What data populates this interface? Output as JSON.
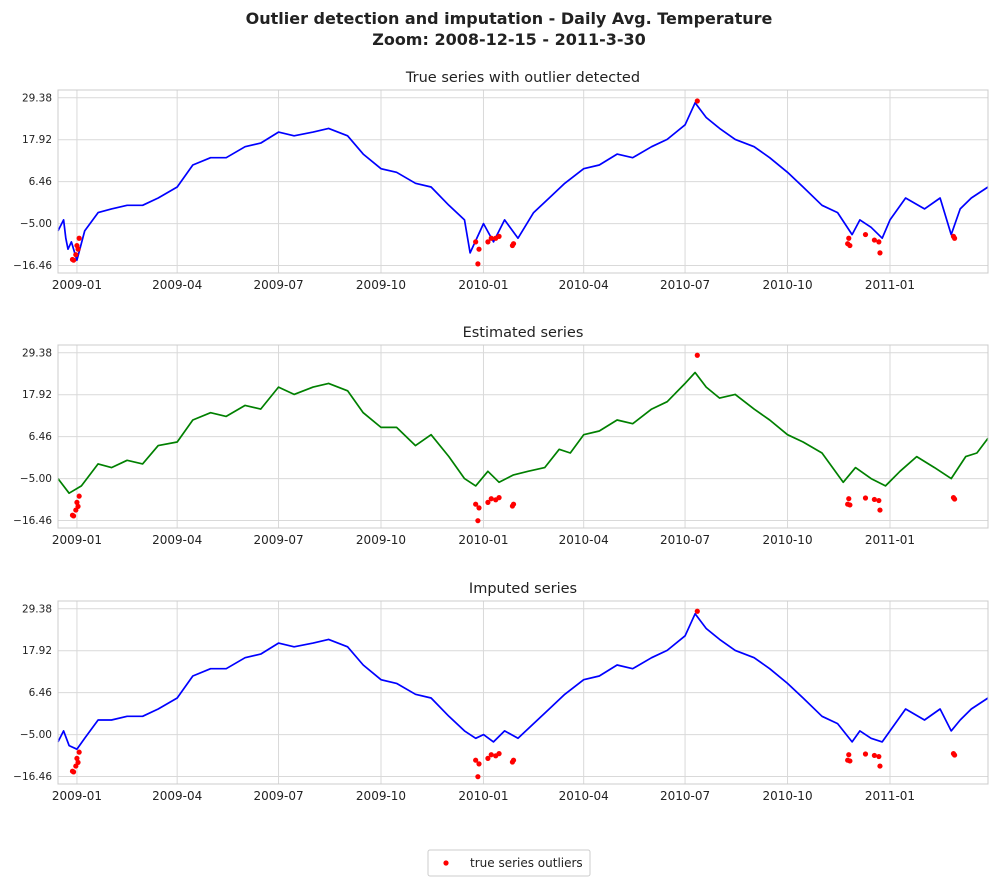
{
  "figure": {
    "title_line1": "Outlier detection and imputation - Daily Avg. Temperature",
    "title_line2": "Zoom: 2008-12-15 - 2011-3-30"
  },
  "legend": {
    "label": "true series outliers",
    "marker_color": "#ff0000"
  },
  "chart_data": [
    {
      "type": "line",
      "title": "True series with outlier detected",
      "xlim": [
        "2008-12-15",
        "2011-03-30"
      ],
      "ylim": [
        -18.5,
        31.5
      ],
      "yticks": [
        29.38,
        17.92,
        6.46,
        -5.0,
        -16.46
      ],
      "ytick_labels": [
        "29.38",
        "17.92",
        "6.46",
        "−5.00",
        "−16.46"
      ],
      "xticks": [
        "2009-01-01",
        "2009-04-01",
        "2009-07-01",
        "2009-10-01",
        "2010-01-01",
        "2010-04-01",
        "2010-07-01",
        "2010-10-01",
        "2011-01-01"
      ],
      "xtick_labels": [
        "2009-01",
        "2009-04",
        "2009-07",
        "2009-10",
        "2010-01",
        "2010-04",
        "2010-07",
        "2010-10",
        "2011-01"
      ],
      "grid": true,
      "line_color": "#0000ff",
      "line": [
        [
          "2008-12-15",
          -7
        ],
        [
          "2008-12-20",
          -4
        ],
        [
          "2008-12-22",
          -9
        ],
        [
          "2008-12-24",
          -12
        ],
        [
          "2008-12-27",
          -10
        ],
        [
          "2009-01-01",
          -15
        ],
        [
          "2009-01-08",
          -7
        ],
        [
          "2009-01-20",
          -2
        ],
        [
          "2009-02-01",
          -1
        ],
        [
          "2009-02-15",
          0
        ],
        [
          "2009-03-01",
          0
        ],
        [
          "2009-03-15",
          2
        ],
        [
          "2009-04-01",
          5
        ],
        [
          "2009-04-15",
          11
        ],
        [
          "2009-05-01",
          13
        ],
        [
          "2009-05-15",
          13
        ],
        [
          "2009-06-01",
          16
        ],
        [
          "2009-06-15",
          17
        ],
        [
          "2009-07-01",
          20
        ],
        [
          "2009-07-15",
          19
        ],
        [
          "2009-08-01",
          20
        ],
        [
          "2009-08-15",
          21
        ],
        [
          "2009-09-01",
          19
        ],
        [
          "2009-09-15",
          14
        ],
        [
          "2009-10-01",
          10
        ],
        [
          "2009-10-15",
          9
        ],
        [
          "2009-11-01",
          6
        ],
        [
          "2009-11-15",
          5
        ],
        [
          "2009-12-01",
          0
        ],
        [
          "2009-12-15",
          -4
        ],
        [
          "2009-12-20",
          -13
        ],
        [
          "2010-01-01",
          -5
        ],
        [
          "2010-01-10",
          -10
        ],
        [
          "2010-01-20",
          -4
        ],
        [
          "2010-02-01",
          -9
        ],
        [
          "2010-02-15",
          -2
        ],
        [
          "2010-03-01",
          2
        ],
        [
          "2010-03-15",
          6
        ],
        [
          "2010-04-01",
          10
        ],
        [
          "2010-04-15",
          11
        ],
        [
          "2010-05-01",
          14
        ],
        [
          "2010-05-15",
          13
        ],
        [
          "2010-06-01",
          16
        ],
        [
          "2010-06-15",
          18
        ],
        [
          "2010-07-01",
          22
        ],
        [
          "2010-07-10",
          28
        ],
        [
          "2010-07-20",
          24
        ],
        [
          "2010-08-01",
          21
        ],
        [
          "2010-08-15",
          18
        ],
        [
          "2010-09-01",
          16
        ],
        [
          "2010-09-15",
          13
        ],
        [
          "2010-10-01",
          9
        ],
        [
          "2010-10-15",
          5
        ],
        [
          "2010-11-01",
          0
        ],
        [
          "2010-11-15",
          -2
        ],
        [
          "2010-11-28",
          -8
        ],
        [
          "2010-12-05",
          -4
        ],
        [
          "2010-12-15",
          -6
        ],
        [
          "2010-12-25",
          -9
        ],
        [
          "2011-01-01",
          -4
        ],
        [
          "2011-01-15",
          2
        ],
        [
          "2011-02-01",
          -1
        ],
        [
          "2011-02-15",
          2
        ],
        [
          "2011-02-25",
          -8
        ],
        [
          "2011-03-05",
          -1
        ],
        [
          "2011-03-15",
          2
        ],
        [
          "2011-03-30",
          5
        ]
      ],
      "outliers": [
        [
          "2008-12-28",
          -14.8
        ],
        [
          "2008-12-29",
          -15.0
        ],
        [
          "2008-12-31",
          -13.5
        ],
        [
          "2009-01-01",
          -11.0
        ],
        [
          "2009-01-02",
          -12.0
        ],
        [
          "2009-01-03",
          -9.0
        ],
        [
          "2009-12-25",
          -10.0
        ],
        [
          "2009-12-27",
          -16.0
        ],
        [
          "2009-12-28",
          -12.0
        ],
        [
          "2010-01-05",
          -10.0
        ],
        [
          "2010-01-08",
          -9.0
        ],
        [
          "2010-01-12",
          -9.0
        ],
        [
          "2010-01-15",
          -8.5
        ],
        [
          "2010-01-27",
          -11.0
        ],
        [
          "2010-01-28",
          -10.5
        ],
        [
          "2010-07-12",
          28.5
        ],
        [
          "2010-11-24",
          -10.5
        ],
        [
          "2010-11-25",
          -9.0
        ],
        [
          "2010-11-26",
          -11.0
        ],
        [
          "2010-12-10",
          -8.0
        ],
        [
          "2010-12-18",
          -9.5
        ],
        [
          "2010-12-22",
          -10.0
        ],
        [
          "2010-12-23",
          -13.0
        ],
        [
          "2011-02-27",
          -8.5
        ],
        [
          "2011-02-28",
          -9.0
        ]
      ]
    },
    {
      "type": "line",
      "title": "Estimated series",
      "xlim": [
        "2008-12-15",
        "2011-03-30"
      ],
      "ylim": [
        -18.5,
        31.5
      ],
      "yticks": [
        29.38,
        17.92,
        6.46,
        -5.0,
        -16.46
      ],
      "ytick_labels": [
        "29.38",
        "17.92",
        "6.46",
        "−5.00",
        "−16.46"
      ],
      "xticks": [
        "2009-01-01",
        "2009-04-01",
        "2009-07-01",
        "2009-10-01",
        "2010-01-01",
        "2010-04-01",
        "2010-07-01",
        "2010-10-01",
        "2011-01-01"
      ],
      "xtick_labels": [
        "2009-01",
        "2009-04",
        "2009-07",
        "2009-10",
        "2010-01",
        "2010-04",
        "2010-07",
        "2010-10",
        "2011-01"
      ],
      "grid": true,
      "line_color": "#008000",
      "line": [
        [
          "2008-12-15",
          -5
        ],
        [
          "2008-12-25",
          -9
        ],
        [
          "2009-01-05",
          -7
        ],
        [
          "2009-01-20",
          -1
        ],
        [
          "2009-02-01",
          -2
        ],
        [
          "2009-02-15",
          0
        ],
        [
          "2009-03-01",
          -1
        ],
        [
          "2009-03-15",
          4
        ],
        [
          "2009-04-01",
          5
        ],
        [
          "2009-04-15",
          11
        ],
        [
          "2009-05-01",
          13
        ],
        [
          "2009-05-15",
          12
        ],
        [
          "2009-06-01",
          15
        ],
        [
          "2009-06-15",
          14
        ],
        [
          "2009-07-01",
          20
        ],
        [
          "2009-07-15",
          18
        ],
        [
          "2009-08-01",
          20
        ],
        [
          "2009-08-15",
          21
        ],
        [
          "2009-09-01",
          19
        ],
        [
          "2009-09-15",
          13
        ],
        [
          "2009-10-01",
          9
        ],
        [
          "2009-10-15",
          9
        ],
        [
          "2009-11-01",
          4
        ],
        [
          "2009-11-15",
          7
        ],
        [
          "2009-12-01",
          1
        ],
        [
          "2009-12-15",
          -5
        ],
        [
          "2009-12-25",
          -7
        ],
        [
          "2010-01-05",
          -3
        ],
        [
          "2010-01-15",
          -6
        ],
        [
          "2010-01-28",
          -4
        ],
        [
          "2010-02-10",
          -3
        ],
        [
          "2010-02-25",
          -2
        ],
        [
          "2010-03-10",
          3
        ],
        [
          "2010-03-20",
          2
        ],
        [
          "2010-04-01",
          7
        ],
        [
          "2010-04-15",
          8
        ],
        [
          "2010-05-01",
          11
        ],
        [
          "2010-05-15",
          10
        ],
        [
          "2010-06-01",
          14
        ],
        [
          "2010-06-15",
          16
        ],
        [
          "2010-07-01",
          21
        ],
        [
          "2010-07-10",
          24
        ],
        [
          "2010-07-20",
          20
        ],
        [
          "2010-08-01",
          17
        ],
        [
          "2010-08-15",
          18
        ],
        [
          "2010-09-01",
          14
        ],
        [
          "2010-09-15",
          11
        ],
        [
          "2010-10-01",
          7
        ],
        [
          "2010-10-15",
          5
        ],
        [
          "2010-11-01",
          2
        ],
        [
          "2010-11-20",
          -6
        ],
        [
          "2010-12-01",
          -2
        ],
        [
          "2010-12-15",
          -5
        ],
        [
          "2010-12-28",
          -7
        ],
        [
          "2011-01-10",
          -3
        ],
        [
          "2011-01-25",
          1
        ],
        [
          "2011-02-10",
          -2
        ],
        [
          "2011-02-25",
          -5
        ],
        [
          "2011-03-10",
          1
        ],
        [
          "2011-03-20",
          2
        ],
        [
          "2011-03-30",
          6
        ]
      ],
      "outliers": [
        [
          "2008-12-28",
          -15.0
        ],
        [
          "2008-12-29",
          -15.2
        ],
        [
          "2008-12-31",
          -13.6
        ],
        [
          "2009-01-01",
          -11.5
        ],
        [
          "2009-01-02",
          -12.6
        ],
        [
          "2009-01-03",
          -9.8
        ],
        [
          "2009-12-25",
          -12.0
        ],
        [
          "2009-12-27",
          -16.5
        ],
        [
          "2009-12-28",
          -13.0
        ],
        [
          "2010-01-05",
          -11.5
        ],
        [
          "2010-01-08",
          -10.5
        ],
        [
          "2010-01-12",
          -10.8
        ],
        [
          "2010-01-15",
          -10.2
        ],
        [
          "2010-01-27",
          -12.5
        ],
        [
          "2010-01-28",
          -12.0
        ],
        [
          "2010-07-12",
          28.7
        ],
        [
          "2010-11-24",
          -12.0
        ],
        [
          "2010-11-25",
          -10.5
        ],
        [
          "2010-11-26",
          -12.2
        ],
        [
          "2010-12-10",
          -10.3
        ],
        [
          "2010-12-18",
          -10.7
        ],
        [
          "2010-12-22",
          -11.0
        ],
        [
          "2010-12-23",
          -13.6
        ],
        [
          "2011-02-27",
          -10.2
        ],
        [
          "2011-02-28",
          -10.6
        ]
      ]
    },
    {
      "type": "line",
      "title": "Imputed series",
      "xlim": [
        "2008-12-15",
        "2011-03-30"
      ],
      "ylim": [
        -18.5,
        31.5
      ],
      "yticks": [
        29.38,
        17.92,
        6.46,
        -5.0,
        -16.46
      ],
      "ytick_labels": [
        "29.38",
        "17.92",
        "6.46",
        "−5.00",
        "−16.46"
      ],
      "xticks": [
        "2009-01-01",
        "2009-04-01",
        "2009-07-01",
        "2009-10-01",
        "2010-01-01",
        "2010-04-01",
        "2010-07-01",
        "2010-10-01",
        "2011-01-01"
      ],
      "xtick_labels": [
        "2009-01",
        "2009-04",
        "2009-07",
        "2009-10",
        "2010-01",
        "2010-04",
        "2010-07",
        "2010-10",
        "2011-01"
      ],
      "grid": true,
      "line_color": "#0000ff",
      "line": [
        [
          "2008-12-15",
          -7
        ],
        [
          "2008-12-20",
          -4
        ],
        [
          "2008-12-25",
          -8
        ],
        [
          "2009-01-01",
          -9
        ],
        [
          "2009-01-08",
          -6
        ],
        [
          "2009-01-20",
          -1
        ],
        [
          "2009-02-01",
          -1
        ],
        [
          "2009-02-15",
          0
        ],
        [
          "2009-03-01",
          0
        ],
        [
          "2009-03-15",
          2
        ],
        [
          "2009-04-01",
          5
        ],
        [
          "2009-04-15",
          11
        ],
        [
          "2009-05-01",
          13
        ],
        [
          "2009-05-15",
          13
        ],
        [
          "2009-06-01",
          16
        ],
        [
          "2009-06-15",
          17
        ],
        [
          "2009-07-01",
          20
        ],
        [
          "2009-07-15",
          19
        ],
        [
          "2009-08-01",
          20
        ],
        [
          "2009-08-15",
          21
        ],
        [
          "2009-09-01",
          19
        ],
        [
          "2009-09-15",
          14
        ],
        [
          "2009-10-01",
          10
        ],
        [
          "2009-10-15",
          9
        ],
        [
          "2009-11-01",
          6
        ],
        [
          "2009-11-15",
          5
        ],
        [
          "2009-12-01",
          0
        ],
        [
          "2009-12-15",
          -4
        ],
        [
          "2009-12-25",
          -6
        ],
        [
          "2010-01-01",
          -5
        ],
        [
          "2010-01-10",
          -7
        ],
        [
          "2010-01-20",
          -4
        ],
        [
          "2010-02-01",
          -6
        ],
        [
          "2010-02-15",
          -2
        ],
        [
          "2010-03-01",
          2
        ],
        [
          "2010-03-15",
          6
        ],
        [
          "2010-04-01",
          10
        ],
        [
          "2010-04-15",
          11
        ],
        [
          "2010-05-01",
          14
        ],
        [
          "2010-05-15",
          13
        ],
        [
          "2010-06-01",
          16
        ],
        [
          "2010-06-15",
          18
        ],
        [
          "2010-07-01",
          22
        ],
        [
          "2010-07-10",
          28
        ],
        [
          "2010-07-20",
          24
        ],
        [
          "2010-08-01",
          21
        ],
        [
          "2010-08-15",
          18
        ],
        [
          "2010-09-01",
          16
        ],
        [
          "2010-09-15",
          13
        ],
        [
          "2010-10-01",
          9
        ],
        [
          "2010-10-15",
          5
        ],
        [
          "2010-11-01",
          0
        ],
        [
          "2010-11-15",
          -2
        ],
        [
          "2010-11-28",
          -7
        ],
        [
          "2010-12-05",
          -4
        ],
        [
          "2010-12-15",
          -6
        ],
        [
          "2010-12-25",
          -7
        ],
        [
          "2011-01-01",
          -4
        ],
        [
          "2011-01-15",
          2
        ],
        [
          "2011-02-01",
          -1
        ],
        [
          "2011-02-15",
          2
        ],
        [
          "2011-02-25",
          -4
        ],
        [
          "2011-03-05",
          -1
        ],
        [
          "2011-03-15",
          2
        ],
        [
          "2011-03-30",
          5
        ]
      ],
      "outliers": [
        [
          "2008-12-28",
          -15.0
        ],
        [
          "2008-12-29",
          -15.2
        ],
        [
          "2008-12-31",
          -13.6
        ],
        [
          "2009-01-01",
          -11.5
        ],
        [
          "2009-01-02",
          -12.6
        ],
        [
          "2009-01-03",
          -9.8
        ],
        [
          "2009-12-25",
          -12.0
        ],
        [
          "2009-12-27",
          -16.5
        ],
        [
          "2009-12-28",
          -13.0
        ],
        [
          "2010-01-05",
          -11.5
        ],
        [
          "2010-01-08",
          -10.5
        ],
        [
          "2010-01-12",
          -10.8
        ],
        [
          "2010-01-15",
          -10.2
        ],
        [
          "2010-01-27",
          -12.5
        ],
        [
          "2010-01-28",
          -12.0
        ],
        [
          "2010-07-12",
          28.7
        ],
        [
          "2010-11-24",
          -12.0
        ],
        [
          "2010-11-25",
          -10.5
        ],
        [
          "2010-11-26",
          -12.2
        ],
        [
          "2010-12-10",
          -10.3
        ],
        [
          "2010-12-18",
          -10.7
        ],
        [
          "2010-12-22",
          -11.0
        ],
        [
          "2010-12-23",
          -13.6
        ],
        [
          "2011-02-27",
          -10.2
        ],
        [
          "2011-02-28",
          -10.6
        ]
      ]
    }
  ]
}
